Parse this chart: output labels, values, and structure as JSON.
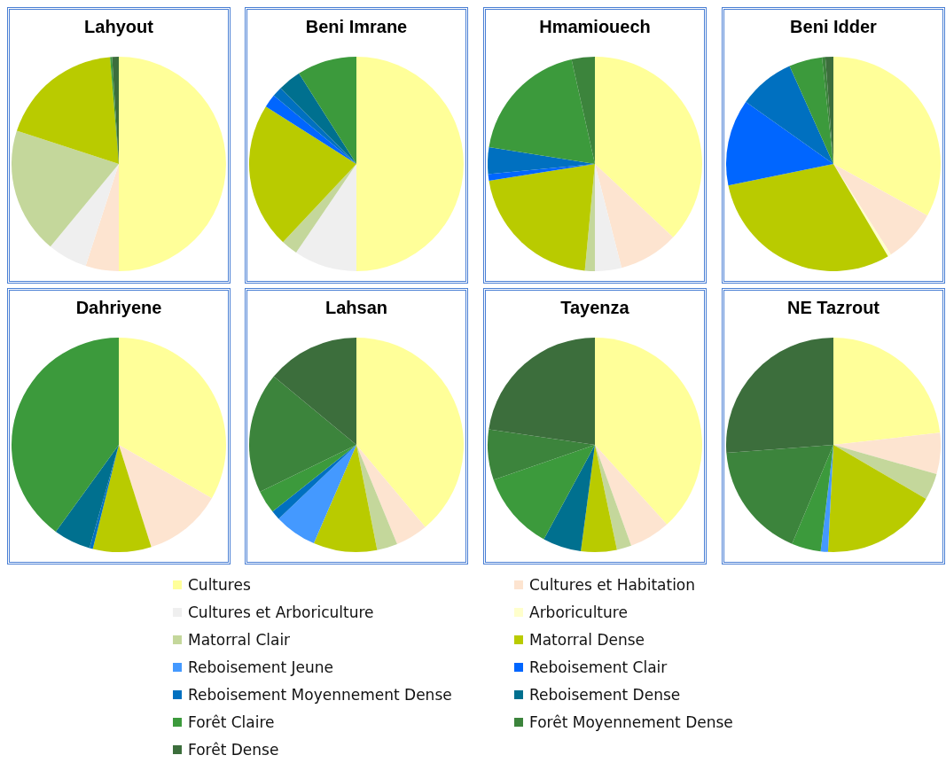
{
  "chart_data": [
    {
      "type": "pie",
      "title": "Lahyout",
      "legend": "bottom",
      "categories": [
        "Cultures",
        "Cultures et Habitation",
        "Cultures et Arboriculture",
        "Arboriculture",
        "Matorral Clair",
        "Matorral Dense",
        "Reboisement Jeune",
        "Reboisement Clair",
        "Reboisement Moyennement Dense",
        "Reboisement Dense",
        "Forêt Claire",
        "Forêt Moyennement Dense",
        "Forêt Dense"
      ],
      "colors": [
        "#ffff99",
        "#fde4d0",
        "#efefef",
        "#ffffcc",
        "#c4d79b",
        "#b9cb00",
        "#4499ff",
        "#0066ff",
        "#0070c0",
        "#00708f",
        "#3c9a3c",
        "#3c843c",
        "#3c6e3c"
      ],
      "values": [
        50,
        5,
        6,
        null,
        19,
        18.7,
        null,
        null,
        null,
        null,
        0.3,
        null,
        1
      ]
    },
    {
      "type": "pie",
      "title": "Beni Imrane",
      "colors": [
        "#ffff99",
        "#fde4d0",
        "#efefef",
        "#ffffcc",
        "#c4d79b",
        "#b9cb00",
        "#4499ff",
        "#0066ff",
        "#0070c0",
        "#00708f",
        "#3c9a3c",
        "#3c843c",
        "#3c6e3c"
      ],
      "values": [
        50,
        null,
        9.5,
        null,
        2.5,
        22,
        null,
        2,
        1.5,
        3.5,
        9,
        null,
        null
      ]
    },
    {
      "type": "pie",
      "title": "Hmamiouech",
      "colors": [
        "#ffff99",
        "#fde4d0",
        "#efefef",
        "#ffffcc",
        "#c4d79b",
        "#b9cb00",
        "#4499ff",
        "#0066ff",
        "#0070c0",
        "#00708f",
        "#3c9a3c",
        "#3c843c",
        "#3c6e3c"
      ],
      "values": [
        37,
        9,
        4,
        null,
        1.5,
        21,
        null,
        1,
        4,
        null,
        19,
        3.5,
        null
      ]
    },
    {
      "type": "pie",
      "title": "Beni Idder",
      "colors": [
        "#ffff99",
        "#fde4d0",
        "#efefef",
        "#ffffcc",
        "#c4d79b",
        "#b9cb00",
        "#4499ff",
        "#0066ff",
        "#0070c0",
        "#00708f",
        "#3c9a3c",
        "#3c843c",
        "#3c6e3c"
      ],
      "values": [
        33,
        8,
        null,
        0.5,
        null,
        30.3,
        null,
        13,
        8.5,
        null,
        5,
        0.5,
        1.2
      ]
    },
    {
      "type": "pie",
      "title": "Dahriyene",
      "colors": [
        "#ffff99",
        "#fde4d0",
        "#efefef",
        "#ffffcc",
        "#c4d79b",
        "#b9cb00",
        "#4499ff",
        "#0066ff",
        "#0070c0",
        "#00708f",
        "#3c9a3c",
        "#3c843c",
        "#3c6e3c"
      ],
      "values": [
        33.3,
        11.8,
        null,
        null,
        null,
        8.8,
        null,
        null,
        0.5,
        5.6,
        40,
        null,
        null
      ]
    },
    {
      "type": "pie",
      "title": "Lahsan",
      "colors": [
        "#ffff99",
        "#fde4d0",
        "#efefef",
        "#ffffcc",
        "#c4d79b",
        "#b9cb00",
        "#4499ff",
        "#0066ff",
        "#0070c0",
        "#00708f",
        "#3c9a3c",
        "#3c843c",
        "#3c6e3c"
      ],
      "values": [
        38.9,
        4.9,
        null,
        null,
        3.1,
        9.6,
        6.4,
        null,
        1.4,
        null,
        3.5,
        18.2,
        14
      ]
    },
    {
      "type": "pie",
      "title": "Tayenza",
      "colors": [
        "#ffff99",
        "#fde4d0",
        "#efefef",
        "#ffffcc",
        "#c4d79b",
        "#b9cb00",
        "#4499ff",
        "#0066ff",
        "#0070c0",
        "#00708f",
        "#3c9a3c",
        "#3c843c",
        "#3c6e3c"
      ],
      "values": [
        38.3,
        6.2,
        null,
        null,
        2.2,
        5.4,
        null,
        null,
        null,
        5.8,
        11.8,
        7.6,
        22.7
      ]
    },
    {
      "type": "pie",
      "title": "NE Tazrout",
      "colors": [
        "#ffff99",
        "#fde4d0",
        "#efefef",
        "#ffffcc",
        "#c4d79b",
        "#b9cb00",
        "#4499ff",
        "#0066ff",
        "#0070c0",
        "#00708f",
        "#3c9a3c",
        "#3c843c",
        "#3c6e3c"
      ],
      "values": [
        23.2,
        6.2,
        null,
        null,
        4,
        17.4,
        1.1,
        null,
        null,
        null,
        4.4,
        17.5,
        26.2
      ]
    }
  ]
}
